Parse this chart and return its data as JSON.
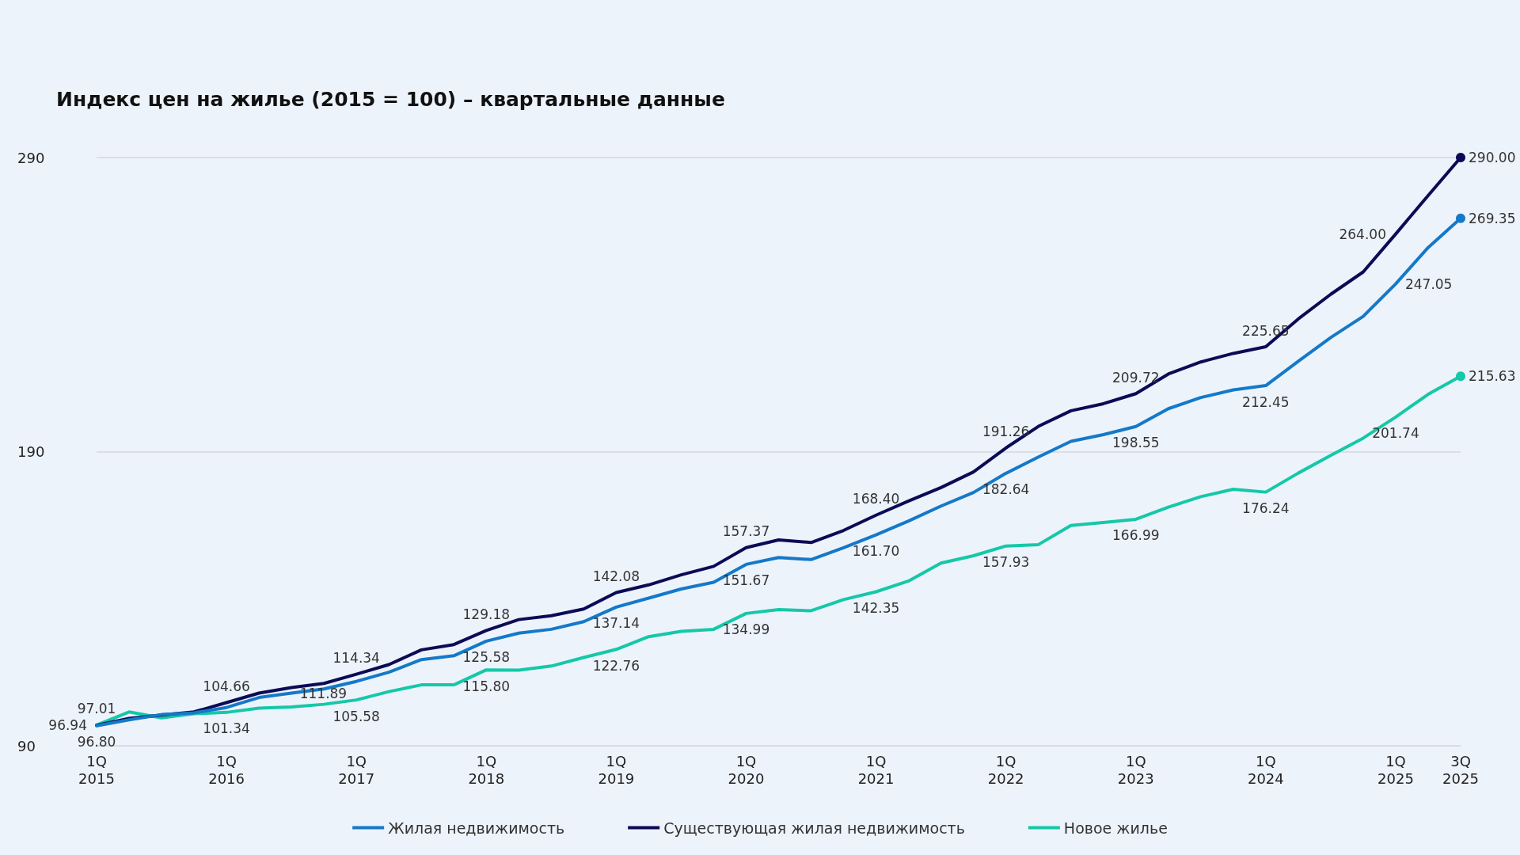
{
  "chart_data": {
    "type": "line",
    "title": "Индекс цен на жилье (2015 = 100) – квартальные данные",
    "categories": [
      "1Q 2015",
      null,
      null,
      null,
      "1Q 2016",
      null,
      null,
      null,
      "1Q 2017",
      null,
      null,
      null,
      "1Q 2018",
      null,
      null,
      null,
      "1Q 2019",
      null,
      null,
      null,
      "1Q 2020",
      null,
      null,
      null,
      "1Q 2021",
      null,
      null,
      null,
      "1Q 2022",
      null,
      null,
      null,
      "1Q 2023",
      null,
      null,
      null,
      "1Q 2024",
      null,
      null,
      null,
      "1Q 2025",
      null,
      "3Q 2025"
    ],
    "series": [
      {
        "name": "Жилая недвижимость",
        "color": "#1479c9",
        "values": [
          96.8,
          98.8,
          100.6,
          101.2,
          103.0,
          106.4,
          107.9,
          109.3,
          111.89,
          115.0,
          119.3,
          120.6,
          125.58,
          128.3,
          129.6,
          132.2,
          137.14,
          140.2,
          143.3,
          145.6,
          151.67,
          154.0,
          153.3,
          157.3,
          161.7,
          166.4,
          171.5,
          176.1,
          182.64,
          188.2,
          193.5,
          195.8,
          198.55,
          204.6,
          208.4,
          211.0,
          212.45,
          220.7,
          228.8,
          236.0,
          247.05,
          259.4,
          269.35
        ],
        "value_labels": [
          "96.80",
          null,
          null,
          null,
          null,
          null,
          null,
          null,
          "111.89",
          null,
          null,
          null,
          "125.58",
          null,
          null,
          null,
          "137.14",
          null,
          null,
          null,
          "151.67",
          null,
          null,
          null,
          "161.70",
          null,
          null,
          null,
          "182.64",
          null,
          null,
          null,
          "198.55",
          null,
          null,
          null,
          "212.45",
          null,
          null,
          null,
          "247.05",
          null,
          "269.35"
        ]
      },
      {
        "name": "Существующая жилая недвижимость",
        "color": "#0b0b55",
        "values": [
          96.94,
          99.3,
          100.4,
          101.5,
          104.66,
          107.9,
          109.8,
          111.2,
          114.34,
          117.6,
          122.6,
          124.4,
          129.18,
          132.9,
          134.2,
          136.5,
          142.08,
          144.7,
          148.1,
          151.0,
          157.37,
          160.0,
          159.1,
          163.2,
          168.4,
          173.2,
          177.8,
          183.1,
          191.26,
          198.6,
          203.9,
          206.3,
          209.72,
          216.4,
          220.5,
          223.4,
          225.65,
          235.1,
          243.5,
          251.1,
          264.0,
          277.1,
          290.0
        ],
        "value_labels": [
          "96.94",
          null,
          null,
          null,
          "104.66",
          null,
          null,
          null,
          "114.34",
          null,
          null,
          null,
          "129.18",
          null,
          null,
          null,
          "142.08",
          null,
          null,
          null,
          "157.37",
          null,
          null,
          null,
          "168.40",
          null,
          null,
          null,
          "191.26",
          null,
          null,
          null,
          "209.72",
          null,
          null,
          null,
          "225.65",
          null,
          null,
          null,
          "264.00",
          null,
          "290.00"
        ]
      },
      {
        "name": "Новое жилье",
        "color": "#14c8a8",
        "values": [
          97.01,
          101.5,
          99.5,
          100.9,
          101.34,
          102.8,
          103.2,
          104.1,
          105.58,
          108.4,
          110.7,
          110.7,
          115.8,
          115.7,
          117.1,
          120.0,
          122.76,
          127.1,
          128.9,
          129.6,
          134.99,
          136.3,
          135.9,
          139.7,
          142.35,
          146.0,
          152.1,
          154.6,
          157.93,
          158.4,
          164.9,
          165.9,
          166.99,
          171.1,
          174.7,
          177.2,
          176.24,
          182.7,
          188.7,
          194.6,
          201.74,
          209.5,
          215.63
        ],
        "value_labels": [
          "97.01",
          null,
          null,
          null,
          "101.34",
          null,
          null,
          null,
          "105.58",
          null,
          null,
          null,
          "115.80",
          null,
          null,
          null,
          "122.76",
          null,
          null,
          null,
          "134.99",
          null,
          null,
          null,
          "142.35",
          null,
          null,
          null,
          "157.93",
          null,
          null,
          null,
          "166.99",
          null,
          null,
          null,
          "176.24",
          null,
          null,
          null,
          "201.74",
          null,
          "215.63"
        ]
      }
    ],
    "ylim": [
      90,
      290
    ],
    "yticks": [
      90,
      190,
      290
    ],
    "grid": "y",
    "legend": "bottom",
    "line_style": "solid"
  }
}
